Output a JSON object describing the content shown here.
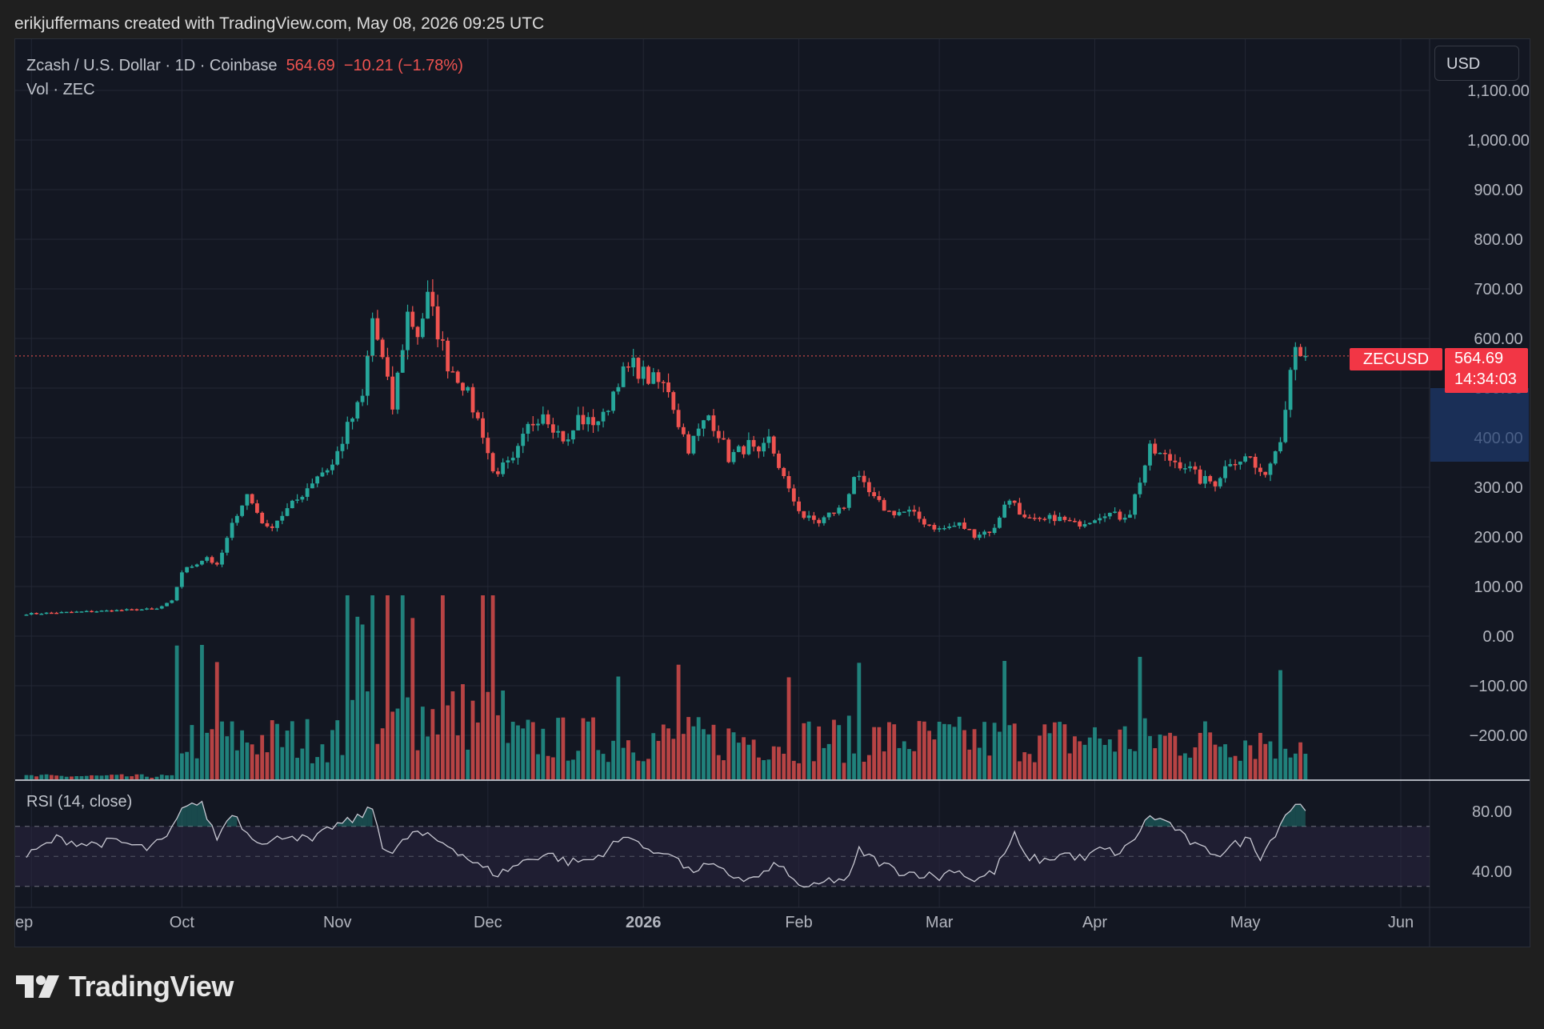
{
  "attribution": "erikjuffermans created with TradingView.com, May 08, 2026 09:25 UTC",
  "header": {
    "symbol_line": "Zcash / U.S. Dollar · 1D · Coinbase",
    "last_price": "564.69",
    "change": "−10.21 (−1.78%)",
    "volume_line": "Vol · ZEC"
  },
  "currency_button": "USD",
  "price_tag": {
    "symbol": "ZECUSD",
    "price": "564.69",
    "countdown": "14:34:03"
  },
  "rsi_label": "RSI (14, close)",
  "brand": "TradingView",
  "colors": {
    "up": "#26a69a",
    "down": "#ef5350",
    "background": "#131722",
    "grid": "#232734",
    "rsi_band": "#2a2540"
  },
  "chart_data": {
    "type": "candlestick",
    "price_axis": {
      "ticks": [
        "1,100.00",
        "1,000.00",
        "900.00",
        "800.00",
        "700.00",
        "600.00",
        "500.00",
        "400.00",
        "300.00",
        "200.00",
        "100.00",
        "0.00",
        "−100.00",
        "−200.00"
      ],
      "range": [
        -280,
        1120
      ]
    },
    "rsi_axis": {
      "ticks": [
        "80.00",
        "40.00"
      ],
      "upper": 70,
      "middle": 50,
      "lower": 30,
      "range": [
        20,
        95
      ]
    },
    "time_axis": {
      "labels": [
        "ep",
        "Oct",
        "Nov",
        "Dec",
        "2026",
        "Feb",
        "Mar",
        "Apr",
        "May",
        "Jun"
      ],
      "label_days": [
        1,
        31,
        62,
        92,
        123,
        154,
        182,
        213,
        243,
        274
      ]
    },
    "current_price": 564.69,
    "price_keypoints": [
      [
        0,
        45
      ],
      [
        26,
        55
      ],
      [
        29,
        70
      ],
      [
        31,
        130
      ],
      [
        36,
        160
      ],
      [
        38,
        140
      ],
      [
        42,
        250
      ],
      [
        44,
        285
      ],
      [
        48,
        215
      ],
      [
        54,
        275
      ],
      [
        58,
        325
      ],
      [
        61,
        345
      ],
      [
        64,
        420
      ],
      [
        67,
        480
      ],
      [
        69,
        640
      ],
      [
        71,
        555
      ],
      [
        73,
        460
      ],
      [
        76,
        650
      ],
      [
        78,
        610
      ],
      [
        80,
        680
      ],
      [
        84,
        550
      ],
      [
        87,
        510
      ],
      [
        91,
        410
      ],
      [
        93,
        330
      ],
      [
        97,
        350
      ],
      [
        100,
        420
      ],
      [
        103,
        455
      ],
      [
        106,
        410
      ],
      [
        108,
        390
      ],
      [
        110,
        440
      ],
      [
        112,
        430
      ],
      [
        115,
        440
      ],
      [
        118,
        520
      ],
      [
        121,
        545
      ],
      [
        124,
        520
      ],
      [
        128,
        500
      ],
      [
        130,
        430
      ],
      [
        132,
        380
      ],
      [
        136,
        445
      ],
      [
        138,
        410
      ],
      [
        140,
        360
      ],
      [
        144,
        385
      ],
      [
        146,
        360
      ],
      [
        148,
        395
      ],
      [
        150,
        345
      ],
      [
        152,
        290
      ],
      [
        155,
        240
      ],
      [
        158,
        230
      ],
      [
        160,
        245
      ],
      [
        163,
        260
      ],
      [
        165,
        325
      ],
      [
        169,
        275
      ],
      [
        172,
        250
      ],
      [
        176,
        250
      ],
      [
        179,
        230
      ],
      [
        182,
        215
      ],
      [
        186,
        225
      ],
      [
        189,
        205
      ],
      [
        193,
        215
      ],
      [
        195,
        270
      ],
      [
        197,
        270
      ],
      [
        199,
        235
      ],
      [
        202,
        230
      ],
      [
        205,
        240
      ],
      [
        209,
        225
      ],
      [
        212,
        235
      ],
      [
        215,
        250
      ],
      [
        218,
        240
      ],
      [
        220,
        250
      ],
      [
        222,
        315
      ],
      [
        224,
        375
      ],
      [
        227,
        360
      ],
      [
        231,
        345
      ],
      [
        234,
        315
      ],
      [
        237,
        310
      ],
      [
        240,
        355
      ],
      [
        244,
        360
      ],
      [
        246,
        320
      ],
      [
        248,
        350
      ],
      [
        250,
        405
      ],
      [
        252,
        540
      ],
      [
        253,
        600
      ],
      [
        254,
        575
      ],
      [
        255,
        565
      ]
    ],
    "rsi_keypoints": [
      [
        0,
        50
      ],
      [
        6,
        62
      ],
      [
        12,
        58
      ],
      [
        18,
        60
      ],
      [
        24,
        55
      ],
      [
        28,
        62
      ],
      [
        32,
        86
      ],
      [
        35,
        84
      ],
      [
        38,
        62
      ],
      [
        41,
        80
      ],
      [
        44,
        66
      ],
      [
        48,
        58
      ],
      [
        52,
        65
      ],
      [
        57,
        60
      ],
      [
        61,
        70
      ],
      [
        65,
        74
      ],
      [
        69,
        82
      ],
      [
        71,
        58
      ],
      [
        73,
        52
      ],
      [
        77,
        66
      ],
      [
        81,
        62
      ],
      [
        85,
        56
      ],
      [
        90,
        44
      ],
      [
        94,
        38
      ],
      [
        100,
        48
      ],
      [
        104,
        52
      ],
      [
        108,
        46
      ],
      [
        113,
        48
      ],
      [
        118,
        60
      ],
      [
        121,
        64
      ],
      [
        124,
        52
      ],
      [
        128,
        54
      ],
      [
        132,
        40
      ],
      [
        136,
        44
      ],
      [
        140,
        38
      ],
      [
        144,
        34
      ],
      [
        148,
        40
      ],
      [
        150,
        46
      ],
      [
        152,
        36
      ],
      [
        156,
        28
      ],
      [
        160,
        34
      ],
      [
        164,
        35
      ],
      [
        166,
        54
      ],
      [
        170,
        46
      ],
      [
        174,
        40
      ],
      [
        179,
        38
      ],
      [
        182,
        36
      ],
      [
        185,
        42
      ],
      [
        189,
        34
      ],
      [
        193,
        40
      ],
      [
        197,
        64
      ],
      [
        199,
        50
      ],
      [
        203,
        47
      ],
      [
        207,
        52
      ],
      [
        211,
        48
      ],
      [
        214,
        55
      ],
      [
        218,
        52
      ],
      [
        220,
        58
      ],
      [
        224,
        77
      ],
      [
        228,
        72
      ],
      [
        231,
        62
      ],
      [
        234,
        55
      ],
      [
        238,
        52
      ],
      [
        241,
        58
      ],
      [
        244,
        62
      ],
      [
        246,
        50
      ],
      [
        248,
        60
      ],
      [
        251,
        78
      ],
      [
        253,
        85
      ],
      [
        255,
        82
      ]
    ],
    "volume_peak_days": [
      30,
      35,
      38,
      64,
      66,
      67,
      69,
      72,
      75,
      77,
      83,
      91,
      93,
      118,
      130,
      152,
      166,
      195,
      222,
      250
    ]
  }
}
